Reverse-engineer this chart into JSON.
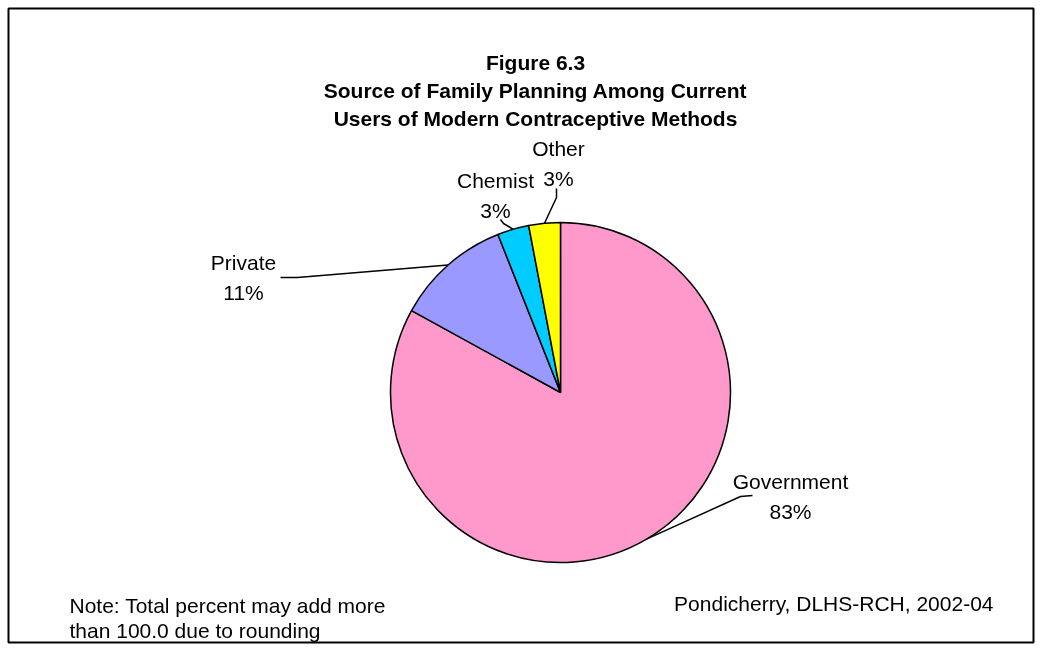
{
  "chart_data": {
    "type": "pie",
    "title": "Figure 6.3",
    "subtitle": "Source of Family Planning Among Current Users of Modern Contraceptive Methods",
    "categories": [
      "Government",
      "Private",
      "Chemist",
      "Other"
    ],
    "values": [
      83,
      11,
      3,
      3
    ],
    "colors": [
      "#ff99cc",
      "#9999ff",
      "#00ccff",
      "#ffff00"
    ],
    "value_labels": [
      "83%",
      "11%",
      "3%",
      "3%"
    ],
    "annotations": [
      "Note: Total percent may add more than 100.0 due to rounding",
      "Pondicherry, DLHS-RCH, 2002-04"
    ]
  }
}
